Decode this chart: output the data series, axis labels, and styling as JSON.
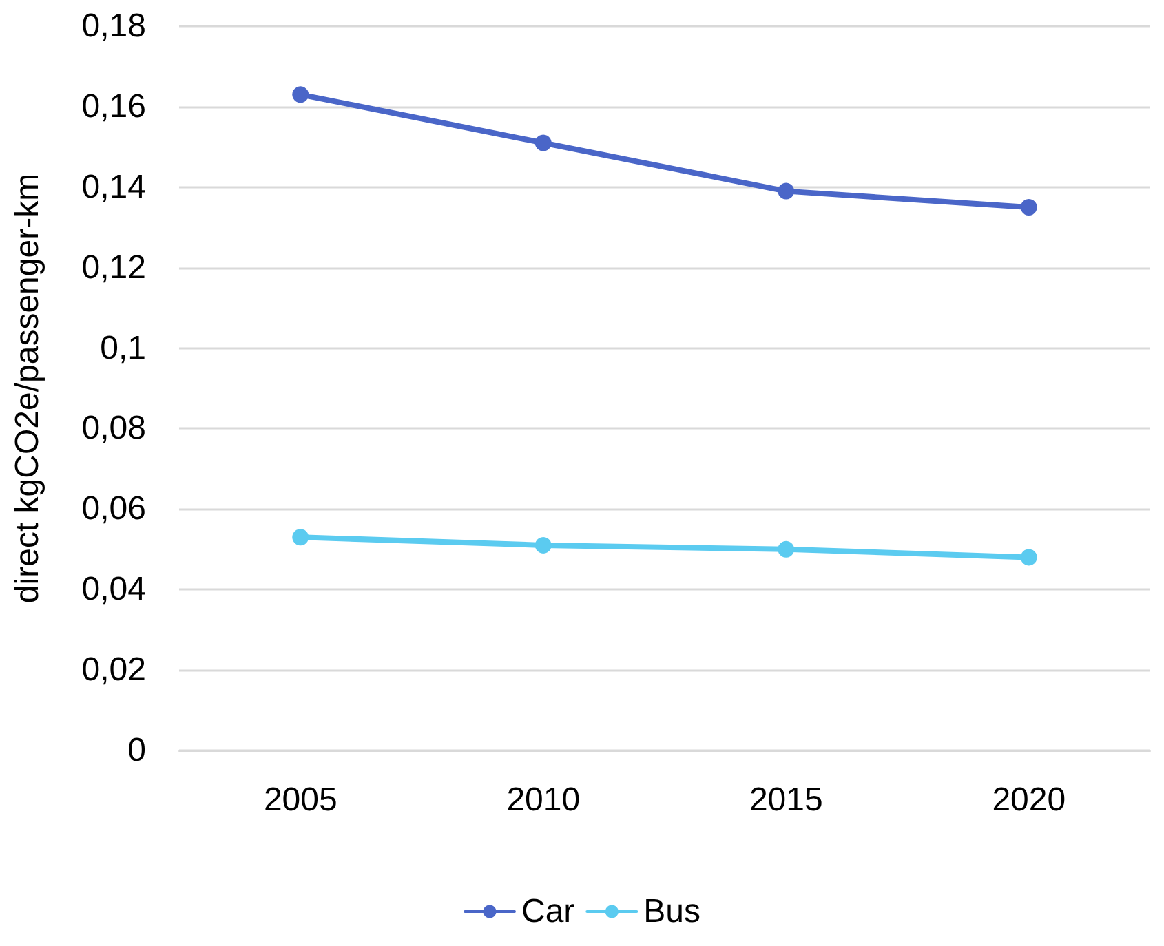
{
  "chart_data": {
    "type": "line",
    "ylabel": "direct kgCO2e/passenger-km",
    "categories": [
      "2005",
      "2010",
      "2015",
      "2020"
    ],
    "series": [
      {
        "name": "Car",
        "color": "#4a66c8",
        "values": [
          0.163,
          0.151,
          0.139,
          0.135
        ]
      },
      {
        "name": "Bus",
        "color": "#5bcbf0",
        "values": [
          0.053,
          0.051,
          0.05,
          0.048
        ]
      }
    ],
    "ylim": [
      0,
      0.18
    ],
    "yticks": [
      0,
      {
        "value": 0.02,
        "label": "0,02"
      },
      {
        "value": 0.04,
        "label": "0,04"
      },
      {
        "value": 0.06,
        "label": "0,06"
      },
      {
        "value": 0.08,
        "label": "0,08"
      },
      {
        "value": 0.1,
        "label": "0,1"
      },
      {
        "value": 0.12,
        "label": "0,12"
      },
      {
        "value": 0.14,
        "label": "0,14"
      },
      {
        "value": 0.16,
        "label": "0,16"
      },
      {
        "value": 0.18,
        "label": "0,18"
      }
    ],
    "grid": "y",
    "legend": "bottom",
    "marker": "circle",
    "line_style": "solid"
  }
}
